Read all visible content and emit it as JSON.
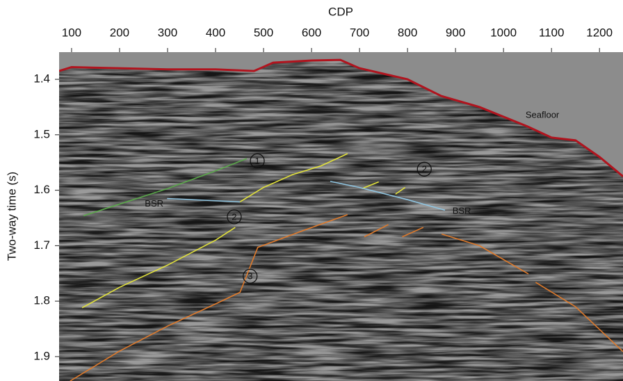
{
  "chart_data": {
    "type": "line",
    "xlabel": "CDP",
    "ylabel": "Two-way time (s)",
    "xlim": [
      74,
      1249
    ],
    "ylim": [
      1.944,
      1.351
    ],
    "xticks": [
      100,
      200,
      300,
      400,
      500,
      600,
      700,
      800,
      900,
      1000,
      1100,
      1200
    ],
    "yticks": [
      1.4,
      1.5,
      1.6,
      1.7,
      1.8,
      1.9
    ],
    "series": [
      {
        "color": "#b0141e",
        "x": [
          74,
          100,
          200,
          300,
          400,
          480,
          520,
          600,
          660,
          700,
          800,
          870,
          950,
          1050,
          1100,
          1150,
          1200,
          1249
        ],
        "values": [
          1.385,
          1.378,
          1.38,
          1.382,
          1.382,
          1.385,
          1.37,
          1.366,
          1.365,
          1.38,
          1.4,
          1.43,
          1.45,
          1.485,
          1.505,
          1.51,
          1.54,
          1.575
        ]
      },
      {
        "color": "#5aa84a",
        "x": [
          125,
          200,
          300,
          400,
          465
        ],
        "values": [
          1.646,
          1.625,
          1.597,
          1.565,
          1.543
        ]
      },
      {
        "color": "#e2e23a",
        "x": [
          451,
          500,
          560,
          620,
          675
        ],
        "values": [
          1.621,
          1.595,
          1.572,
          1.556,
          1.534
        ]
      },
      {
        "color": "#e2e23a",
        "x": [
          705,
          740
        ],
        "values": [
          1.597,
          1.585
        ]
      },
      {
        "color": "#e2e23a",
        "x": [
          775,
          795
        ],
        "values": [
          1.607,
          1.595
        ]
      },
      {
        "color": "#e2e23a",
        "x": [
          122,
          200,
          300,
          400,
          441
        ],
        "values": [
          1.812,
          1.775,
          1.735,
          1.69,
          1.667
        ]
      },
      {
        "color": "#8fc4e0",
        "x": [
          299,
          451
        ],
        "values": [
          1.615,
          1.621
        ]
      },
      {
        "color": "#8fc4e0",
        "x": [
          639,
          700,
          800,
          878
        ],
        "values": [
          1.584,
          1.595,
          1.617,
          1.636
        ]
      },
      {
        "color": "#e07a2a",
        "x": [
          97,
          200,
          300,
          400,
          451,
          488,
          588,
          675
        ],
        "values": [
          1.944,
          1.89,
          1.845,
          1.805,
          1.784,
          1.703,
          1.671,
          1.644
        ]
      },
      {
        "color": "#e07a2a",
        "x": [
          710,
          760
        ],
        "values": [
          1.684,
          1.662
        ]
      },
      {
        "color": "#e07a2a",
        "x": [
          789,
          833
        ],
        "values": [
          1.684,
          1.667
        ]
      },
      {
        "color": "#e07a2a",
        "x": [
          871,
          950,
          1052
        ],
        "values": [
          1.679,
          1.7,
          1.751
        ]
      },
      {
        "color": "#e07a2a",
        "x": [
          1067,
          1150,
          1249
        ],
        "values": [
          1.766,
          1.81,
          1.891
        ]
      }
    ],
    "annotations": [
      {
        "text": "Seafloor",
        "x": 1081,
        "y": 1.464
      },
      {
        "text": "BSR",
        "x": 272,
        "y": 1.624
      },
      {
        "text": "BSR",
        "x": 913,
        "y": 1.637
      },
      {
        "text": "1",
        "x": 487,
        "y": 1.547,
        "circled": true
      },
      {
        "text": "2",
        "x": 835,
        "y": 1.562,
        "circled": true
      },
      {
        "text": "2",
        "x": 439,
        "y": 1.648,
        "circled": true
      },
      {
        "text": "3",
        "x": 472,
        "y": 1.755,
        "circled": true
      }
    ]
  }
}
